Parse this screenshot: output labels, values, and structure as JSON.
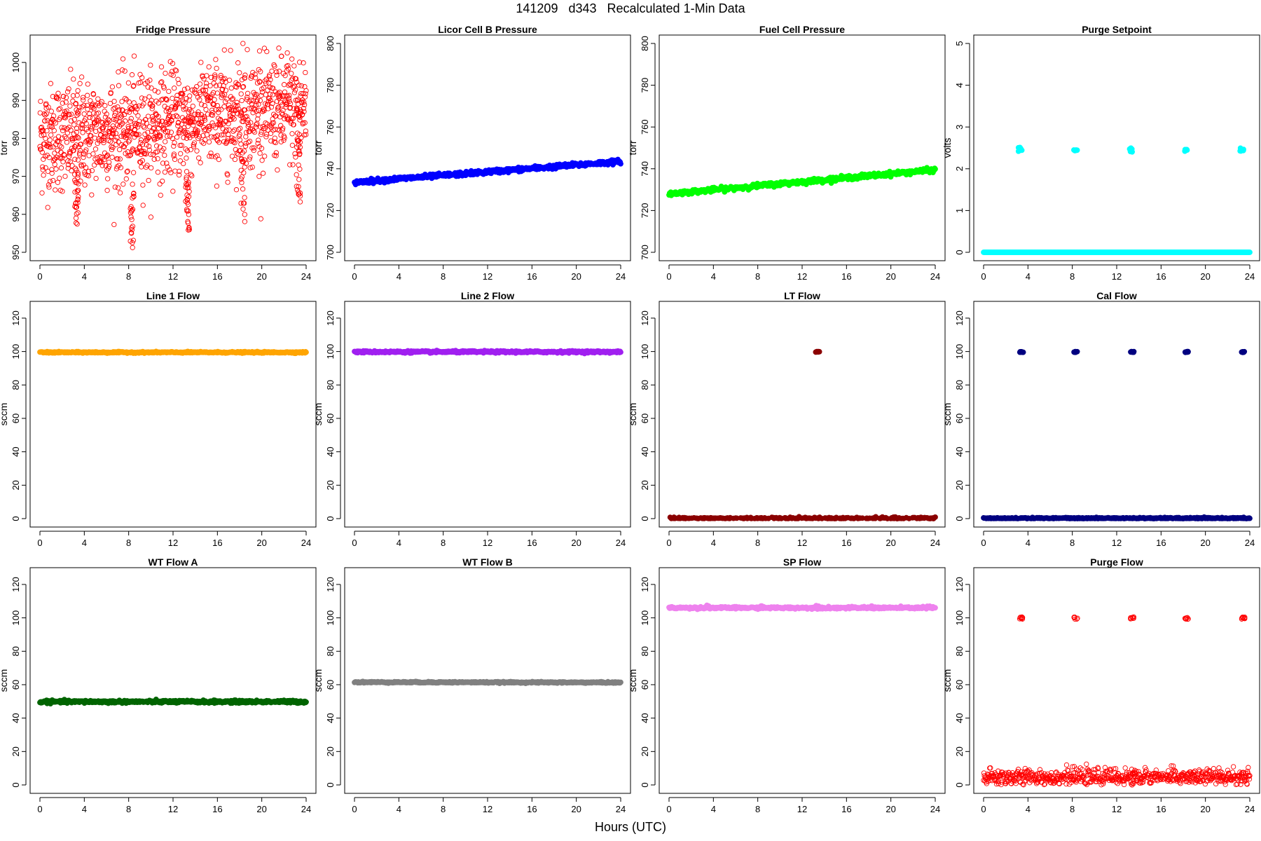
{
  "figure": {
    "title": "141209   d343   Recalculated 1-Min Data",
    "xlabel": "Hours (UTC)"
  },
  "chart_data": [
    {
      "id": "fridge-pressure",
      "type": "scatter",
      "title": "Fridge Pressure",
      "ylabel": "torr",
      "color": "#ff0000",
      "marker": "open-circle",
      "xlim": [
        0,
        24
      ],
      "ylim": [
        950,
        1005
      ],
      "xticks": [
        0,
        4,
        8,
        12,
        16,
        20,
        24
      ],
      "yticks": [
        950,
        960,
        970,
        980,
        990,
        1000
      ],
      "segments": [
        {
          "x0": 0,
          "x1": 8,
          "y0": 980,
          "y1": 982,
          "spread": 7,
          "count": 420
        },
        {
          "x0": 8,
          "x1": 16,
          "y0": 982,
          "y1": 986,
          "spread": 7,
          "count": 420
        },
        {
          "x0": 16,
          "x1": 24,
          "y0": 986,
          "y1": 988,
          "spread": 7,
          "count": 420
        }
      ],
      "clusters": [
        {
          "x": 3.3,
          "y0": 956,
          "y1": 972,
          "count": 28
        },
        {
          "x": 8.3,
          "y0": 951,
          "y1": 966,
          "count": 22
        },
        {
          "x": 13.3,
          "y0": 955,
          "y1": 972,
          "count": 28
        },
        {
          "x": 18.3,
          "y0": 958,
          "y1": 976,
          "count": 18
        },
        {
          "x": 23.3,
          "y0": 963,
          "y1": 980,
          "count": 26
        }
      ],
      "points": [
        [
          18.3,
          1005
        ],
        [
          22.3,
          1002.5
        ],
        [
          19.8,
          1003
        ],
        [
          9.2,
          996
        ],
        [
          12.2,
          998
        ]
      ]
    },
    {
      "id": "licor-cell-b-pressure",
      "type": "scatter",
      "title": "Licor Cell B Pressure",
      "ylabel": "torr",
      "color": "#0000ff",
      "marker": "filled-circle",
      "xlim": [
        0,
        24
      ],
      "ylim": [
        700,
        800
      ],
      "xticks": [
        0,
        4,
        8,
        12,
        16,
        20,
        24
      ],
      "yticks": [
        700,
        720,
        740,
        760,
        780,
        800
      ],
      "segments": [
        {
          "x0": 0,
          "x1": 24,
          "y0": 733.5,
          "y1": 743.5,
          "spread": 0.5,
          "count": 480
        }
      ]
    },
    {
      "id": "fuel-cell-pressure",
      "type": "scatter",
      "title": "Fuel Cell Pressure",
      "ylabel": "torr",
      "color": "#00ff00",
      "marker": "filled-circle",
      "xlim": [
        0,
        24
      ],
      "ylim": [
        700,
        800
      ],
      "xticks": [
        0,
        4,
        8,
        12,
        16,
        20,
        24
      ],
      "yticks": [
        700,
        720,
        740,
        760,
        780,
        800
      ],
      "segments": [
        {
          "x0": 0,
          "x1": 24,
          "y0": 728,
          "y1": 739.5,
          "spread": 0.5,
          "count": 480
        }
      ]
    },
    {
      "id": "purge-setpoint",
      "type": "scatter",
      "title": "Purge Setpoint",
      "ylabel": "volts",
      "color": "#00ffff",
      "marker": "filled-circle",
      "xlim": [
        0,
        24
      ],
      "ylim": [
        0,
        5
      ],
      "xticks": [
        0,
        4,
        8,
        12,
        16,
        20,
        24
      ],
      "yticks": [
        0,
        1,
        2,
        3,
        4,
        5
      ],
      "segments": [
        {
          "x0": 0,
          "x1": 24,
          "y0": 0,
          "y1": 0,
          "spread": 0,
          "count": 480
        }
      ],
      "clusters": [
        {
          "x": 3.3,
          "y0": 2.4,
          "y1": 2.52,
          "count": 8
        },
        {
          "x": 8.3,
          "y0": 2.4,
          "y1": 2.46,
          "count": 6
        },
        {
          "x": 13.3,
          "y0": 2.4,
          "y1": 2.5,
          "count": 8
        },
        {
          "x": 18.3,
          "y0": 2.4,
          "y1": 2.46,
          "count": 6
        },
        {
          "x": 23.3,
          "y0": 2.4,
          "y1": 2.5,
          "count": 8
        }
      ]
    },
    {
      "id": "line-1-flow",
      "type": "scatter",
      "title": "Line 1 Flow",
      "ylabel": "sccm",
      "color": "#ffa500",
      "marker": "filled-circle",
      "xlim": [
        0,
        24
      ],
      "ylim": [
        0,
        125
      ],
      "xticks": [
        0,
        4,
        8,
        12,
        16,
        20,
        24
      ],
      "yticks": [
        0,
        20,
        40,
        60,
        80,
        100,
        120
      ],
      "segments": [
        {
          "x0": 0,
          "x1": 24,
          "y0": 99.5,
          "y1": 99.5,
          "spread": 0.2,
          "count": 480
        }
      ]
    },
    {
      "id": "line-2-flow",
      "type": "scatter",
      "title": "Line 2 Flow",
      "ylabel": "sccm",
      "color": "#a020f0",
      "marker": "filled-circle",
      "xlim": [
        0,
        24
      ],
      "ylim": [
        0,
        125
      ],
      "xticks": [
        0,
        4,
        8,
        12,
        16,
        20,
        24
      ],
      "yticks": [
        0,
        20,
        40,
        60,
        80,
        100,
        120
      ],
      "segments": [
        {
          "x0": 0,
          "x1": 24,
          "y0": 99.8,
          "y1": 99.8,
          "spread": 0.3,
          "count": 480
        }
      ]
    },
    {
      "id": "lt-flow",
      "type": "scatter",
      "title": "LT Flow",
      "ylabel": "sccm",
      "color": "#8b0000",
      "marker": "filled-circle",
      "xlim": [
        0,
        24
      ],
      "ylim": [
        0,
        125
      ],
      "xticks": [
        0,
        4,
        8,
        12,
        16,
        20,
        24
      ],
      "yticks": [
        0,
        20,
        40,
        60,
        80,
        100,
        120
      ],
      "segments": [
        {
          "x0": 0,
          "x1": 24,
          "y0": 0,
          "y1": 0,
          "spread": 0.4,
          "count": 480
        }
      ],
      "clusters": [
        {
          "x": 13.4,
          "y0": 99.5,
          "y1": 100,
          "count": 8
        }
      ]
    },
    {
      "id": "cal-flow",
      "type": "scatter",
      "title": "Cal Flow",
      "ylabel": "sccm",
      "color": "#000080",
      "marker": "filled-circle",
      "xlim": [
        0,
        24
      ],
      "ylim": [
        0,
        125
      ],
      "xticks": [
        0,
        4,
        8,
        12,
        16,
        20,
        24
      ],
      "yticks": [
        0,
        20,
        40,
        60,
        80,
        100,
        120
      ],
      "segments": [
        {
          "x0": 0,
          "x1": 24,
          "y0": 0.2,
          "y1": 0.2,
          "spread": 0.2,
          "count": 480
        }
      ],
      "clusters": [
        {
          "x": 3.4,
          "y0": 99.5,
          "y1": 100,
          "count": 10
        },
        {
          "x": 8.3,
          "y0": 99.5,
          "y1": 100,
          "count": 8
        },
        {
          "x": 13.4,
          "y0": 99.5,
          "y1": 100,
          "count": 10
        },
        {
          "x": 18.3,
          "y0": 99.5,
          "y1": 100,
          "count": 8
        },
        {
          "x": 23.4,
          "y0": 99.5,
          "y1": 100,
          "count": 10
        }
      ]
    },
    {
      "id": "wt-flow-a",
      "type": "scatter",
      "title": "WT Flow A",
      "ylabel": "sccm",
      "color": "#006400",
      "marker": "filled-circle",
      "xlim": [
        0,
        24
      ],
      "ylim": [
        0,
        125
      ],
      "xticks": [
        0,
        4,
        8,
        12,
        16,
        20,
        24
      ],
      "yticks": [
        0,
        20,
        40,
        60,
        80,
        100,
        120
      ],
      "segments": [
        {
          "x0": 0,
          "x1": 24,
          "y0": 49.8,
          "y1": 49.8,
          "spread": 0.4,
          "count": 480
        }
      ]
    },
    {
      "id": "wt-flow-b",
      "type": "scatter",
      "title": "WT Flow B",
      "ylabel": "sccm",
      "color": "#808080",
      "marker": "filled-circle",
      "xlim": [
        0,
        24
      ],
      "ylim": [
        0,
        125
      ],
      "xticks": [
        0,
        4,
        8,
        12,
        16,
        20,
        24
      ],
      "yticks": [
        0,
        20,
        40,
        60,
        80,
        100,
        120
      ],
      "segments": [
        {
          "x0": 0,
          "x1": 24,
          "y0": 61.5,
          "y1": 61.3,
          "spread": 0.2,
          "count": 480
        }
      ]
    },
    {
      "id": "sp-flow",
      "type": "scatter",
      "title": "SP Flow",
      "ylabel": "sccm",
      "color": "#ee82ee",
      "marker": "filled-circle",
      "xlim": [
        0,
        24
      ],
      "ylim": [
        0,
        125
      ],
      "xticks": [
        0,
        4,
        8,
        12,
        16,
        20,
        24
      ],
      "yticks": [
        0,
        20,
        40,
        60,
        80,
        100,
        120
      ],
      "segments": [
        {
          "x0": 0,
          "x1": 24,
          "y0": 106,
          "y1": 106,
          "spread": 0.3,
          "count": 480
        }
      ],
      "clusters": [
        {
          "x": 3.4,
          "y0": 106,
          "y1": 107.5,
          "count": 8
        },
        {
          "x": 8.3,
          "y0": 106,
          "y1": 107.2,
          "count": 6
        },
        {
          "x": 13.4,
          "y0": 106,
          "y1": 107.5,
          "count": 8
        },
        {
          "x": 18.3,
          "y0": 106,
          "y1": 107.2,
          "count": 6
        },
        {
          "x": 23.4,
          "y0": 106,
          "y1": 107.2,
          "count": 6
        }
      ]
    },
    {
      "id": "purge-flow",
      "type": "scatter",
      "title": "Purge Flow",
      "ylabel": "sccm",
      "color": "#ff0000",
      "marker": "open-circle",
      "xlim": [
        0,
        24
      ],
      "ylim": [
        0,
        125
      ],
      "xticks": [
        0,
        4,
        8,
        12,
        16,
        20,
        24
      ],
      "yticks": [
        0,
        20,
        40,
        60,
        80,
        100,
        120
      ],
      "segments": [
        {
          "x0": 0,
          "x1": 24,
          "y0": 4.5,
          "y1": 4.5,
          "spread": 2.5,
          "count": 700
        }
      ],
      "clusters": [
        {
          "x": 3.4,
          "y0": 99.2,
          "y1": 100.5,
          "count": 10
        },
        {
          "x": 8.3,
          "y0": 99.2,
          "y1": 100.5,
          "count": 8
        },
        {
          "x": 13.4,
          "y0": 99.2,
          "y1": 100.5,
          "count": 10
        },
        {
          "x": 18.3,
          "y0": 99.2,
          "y1": 100.5,
          "count": 8
        },
        {
          "x": 23.4,
          "y0": 99.2,
          "y1": 100.5,
          "count": 10
        },
        {
          "x": 13.5,
          "y0": 6,
          "y1": 8,
          "count": 6
        }
      ]
    }
  ]
}
